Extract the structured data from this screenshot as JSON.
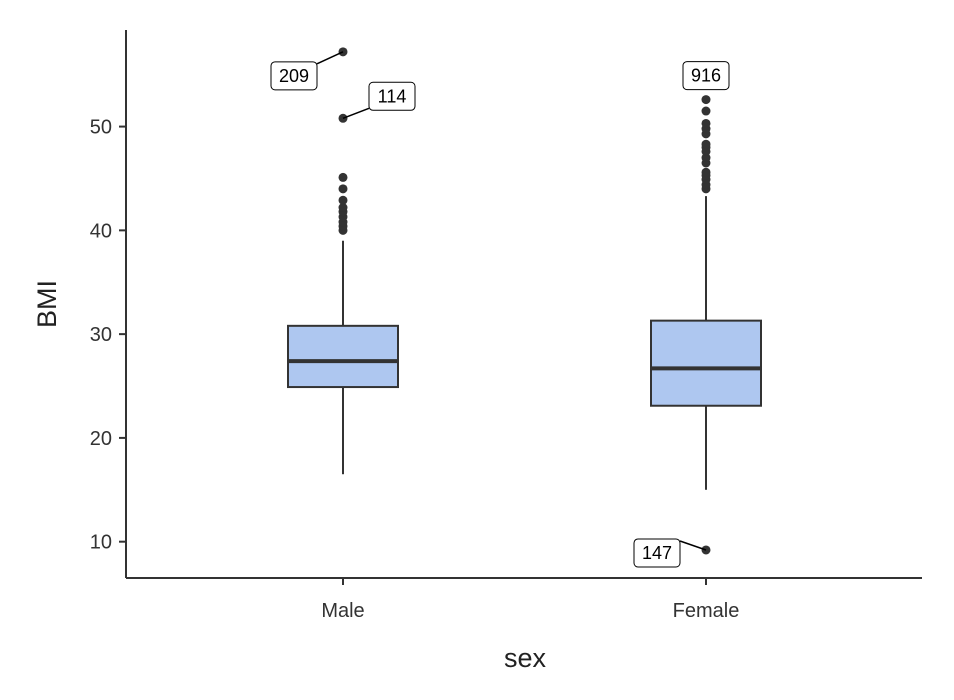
{
  "chart_data": {
    "type": "box",
    "xlabel": "sex",
    "ylabel": "BMI",
    "ylim": [
      6.5,
      59.5
    ],
    "yticks": [
      10,
      20,
      30,
      40,
      50
    ],
    "categories": [
      "Male",
      "Female"
    ],
    "grid": false,
    "box_color": "#aec7f0",
    "line_color": "#333333",
    "groups": [
      {
        "category": "Male",
        "whisker_low": 16.5,
        "q1": 24.9,
        "median": 27.4,
        "q3": 30.8,
        "whisker_high": 39.0,
        "outliers": [
          40.0,
          40.4,
          40.8,
          41.3,
          41.8,
          42.2,
          42.9,
          44.0,
          45.1,
          50.8,
          57.2
        ],
        "labeled_outliers": [
          {
            "label": "209",
            "value": 57.2
          },
          {
            "label": "114",
            "value": 50.8
          }
        ]
      },
      {
        "category": "Female",
        "whisker_low": 15.0,
        "q1": 23.1,
        "median": 26.7,
        "q3": 31.3,
        "whisker_high": 43.3,
        "outliers": [
          9.2,
          44.0,
          44.4,
          44.9,
          45.3,
          45.6,
          46.5,
          47.0,
          47.6,
          48.0,
          48.3,
          49.3,
          49.8,
          50.3,
          51.5,
          52.6
        ],
        "labeled_outliers": [
          {
            "label": "916",
            "value": 52.6
          },
          {
            "label": "147",
            "value": 9.2
          }
        ]
      }
    ]
  }
}
